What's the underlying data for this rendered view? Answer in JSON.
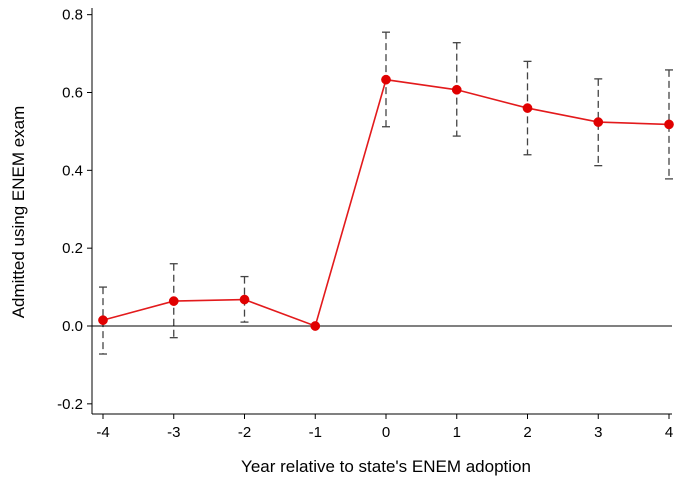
{
  "chart_data": {
    "type": "line",
    "title": "",
    "xlabel": "Year relative to state's ENEM adoption",
    "ylabel": "Admitted using ENEM exam",
    "xlim": [
      -4,
      4
    ],
    "ylim": [
      -0.2,
      0.8
    ],
    "x_ticks": [
      "-4",
      "-3",
      "-2",
      "-1",
      "0",
      "1",
      "2",
      "3",
      "4"
    ],
    "y_ticks": [
      "-0.2",
      "0.0",
      "0.2",
      "0.4",
      "0.6",
      "0.8"
    ],
    "reference_line_y": 0,
    "grid": false,
    "legend": "none",
    "colors": {
      "series": "#e31a1c",
      "marker": "#e00000",
      "ci": "#444444",
      "axis": "#000000"
    },
    "series": [
      {
        "x": [
          -4,
          -3,
          -2,
          -1,
          0,
          1,
          2,
          3,
          4
        ],
        "values": [
          0.015,
          0.064,
          0.068,
          0.0,
          0.633,
          0.607,
          0.56,
          0.524,
          0.518
        ],
        "ci_low": [
          -0.072,
          -0.03,
          0.01,
          null,
          0.512,
          0.488,
          0.44,
          0.412,
          0.378
        ],
        "ci_high": [
          0.1,
          0.16,
          0.127,
          null,
          0.755,
          0.728,
          0.68,
          0.635,
          0.658
        ]
      }
    ]
  }
}
